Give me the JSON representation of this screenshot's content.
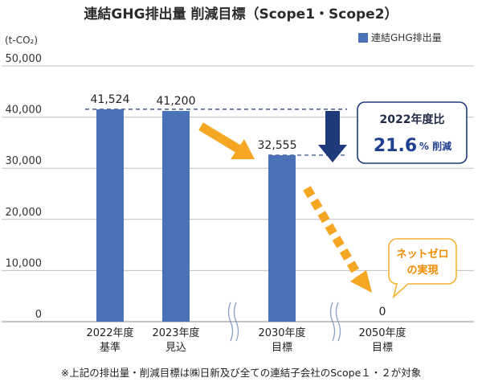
{
  "chart_data": {
    "type": "bar",
    "title": "連結GHG排出量 削減目標（Scope1・Scope2）",
    "ylabel": "(t-CO₂)",
    "ylim": [
      0,
      50000
    ],
    "yticks": [
      "50,000",
      "40,000",
      "30,000",
      "20,000",
      "10,000",
      "0"
    ],
    "categories": [
      {
        "line1": "2022年度",
        "line2": "基準"
      },
      {
        "line1": "2023年度",
        "line2": "見込"
      },
      {
        "line1": "2030年度",
        "line2": "目標"
      },
      {
        "line1": "2050年度",
        "line2": "目標"
      }
    ],
    "values": [
      41524,
      41200,
      32555,
      0
    ],
    "value_labels": [
      "41,524",
      "41,200",
      "32,555",
      "0"
    ],
    "series": [
      {
        "name": "連結GHG排出量",
        "color": "#4a72b8"
      }
    ],
    "legend": "top-right",
    "grid": true,
    "annotations": {
      "comparison_title": "2022年度比",
      "reduction_value": "21.6",
      "reduction_unit": "% 削減",
      "net_zero_line1": "ネットゼロ",
      "net_zero_line2": "の実現"
    },
    "colors": {
      "bar": "#4a72b8",
      "arrow_navy": "#1f3a7a",
      "arrow_orange": "#f5a623",
      "callout": "#f5b234"
    }
  },
  "footnote": "※上記の排出量・削減目標は㈱日新及び全ての連結子会社のScope１・２が対象"
}
